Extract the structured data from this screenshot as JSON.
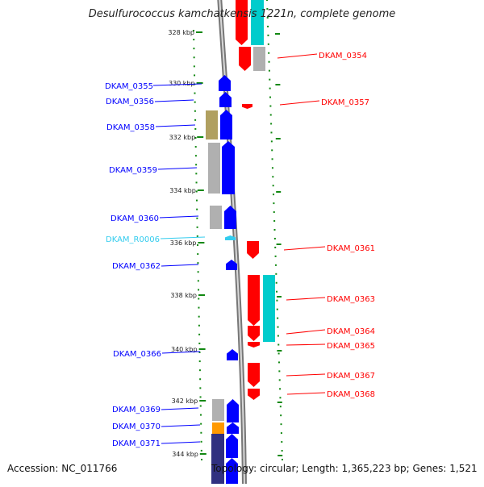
{
  "title": "Desulfurococcus kamchatkensis 1221n, complete genome",
  "footer": {
    "accession": "Accession: NC_011766",
    "info": "Topology: circular; Length: 1,365,223 bp; Genes: 1,521"
  },
  "colors": {
    "forward": "#ff0000",
    "reverse": "#0000ff",
    "rna": "#33ccee",
    "backbone": "#888888",
    "tick": "#118811",
    "cog_grey": "#b0b0b0",
    "cog_cyan": "#00cccc",
    "cog_olive": "#b0a060",
    "cog_orange": "#ff9900",
    "cog_navy": "#303080"
  },
  "chart_data": {
    "type": "genome-map",
    "kbp_ticks": [
      "328 kbp",
      "330 kbp",
      "332 kbp",
      "334 kbp",
      "336 kbp",
      "338 kbp",
      "340 kbp",
      "342 kbp",
      "344 kbp"
    ],
    "genes": [
      {
        "id": "DKAM_0354",
        "strand": "+",
        "color": "#ff0000"
      },
      {
        "id": "DKAM_0355",
        "strand": "-",
        "color": "#0000ff"
      },
      {
        "id": "DKAM_0356",
        "strand": "-",
        "color": "#0000ff"
      },
      {
        "id": "DKAM_0357",
        "strand": "+",
        "color": "#ff0000"
      },
      {
        "id": "DKAM_0358",
        "strand": "-",
        "color": "#0000ff"
      },
      {
        "id": "DKAM_0359",
        "strand": "-",
        "color": "#0000ff"
      },
      {
        "id": "DKAM_0360",
        "strand": "-",
        "color": "#0000ff"
      },
      {
        "id": "DKAM_R0006",
        "strand": "-",
        "color": "#33ccee"
      },
      {
        "id": "DKAM_0361",
        "strand": "+",
        "color": "#ff0000"
      },
      {
        "id": "DKAM_0362",
        "strand": "-",
        "color": "#0000ff"
      },
      {
        "id": "DKAM_0363",
        "strand": "+",
        "color": "#ff0000"
      },
      {
        "id": "DKAM_0364",
        "strand": "+",
        "color": "#ff0000"
      },
      {
        "id": "DKAM_0365",
        "strand": "+",
        "color": "#ff0000"
      },
      {
        "id": "DKAM_0366",
        "strand": "-",
        "color": "#0000ff"
      },
      {
        "id": "DKAM_0367",
        "strand": "+",
        "color": "#ff0000"
      },
      {
        "id": "DKAM_0368",
        "strand": "+",
        "color": "#ff0000"
      },
      {
        "id": "DKAM_0369",
        "strand": "-",
        "color": "#0000ff"
      },
      {
        "id": "DKAM_0370",
        "strand": "-",
        "color": "#0000ff"
      },
      {
        "id": "DKAM_0371",
        "strand": "-",
        "color": "#0000ff"
      }
    ]
  }
}
